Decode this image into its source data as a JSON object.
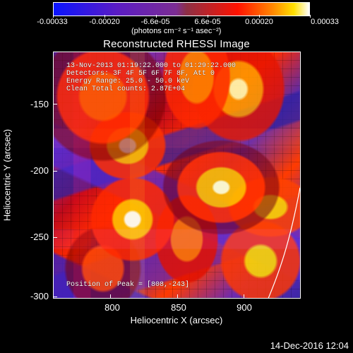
{
  "colorbar": {
    "ticks": [
      "-0.00033",
      "-0.00020",
      "-6.6e-05",
      "6.6e-05",
      "0.00020",
      "0.00033"
    ],
    "units": "(photons cm⁻² s⁻¹ asec⁻²)"
  },
  "plot": {
    "title": "Reconstructed RHESSI Image",
    "info_lines": [
      "13-Nov-2013 01:19:22.000 to 01:29:22.000",
      "Detectors: 3F 4F 5F 6F 7F 8F, Att 0",
      "Energy Range: 25.0 - 50.0 keV",
      "Clean     Total counts: 2.87E+04"
    ],
    "peak": "Position of Peak = [808,-243]",
    "x_axis": {
      "title": "Heliocentric X (arcsec)",
      "ticks": [
        "800",
        "850",
        "900"
      ]
    },
    "y_axis": {
      "title": "Heliocentric Y (arcsec)",
      "ticks": [
        "-150",
        "-200",
        "-250",
        "-300"
      ]
    },
    "colors": {
      "background": "#000000",
      "axis": "#ffffff",
      "low": "#0a14ff",
      "middle": "#7c2d93",
      "high": "#ff1200",
      "peak": "#ffe000"
    }
  },
  "footer": {
    "timestamp": "14-Dec-2016 12:04"
  }
}
